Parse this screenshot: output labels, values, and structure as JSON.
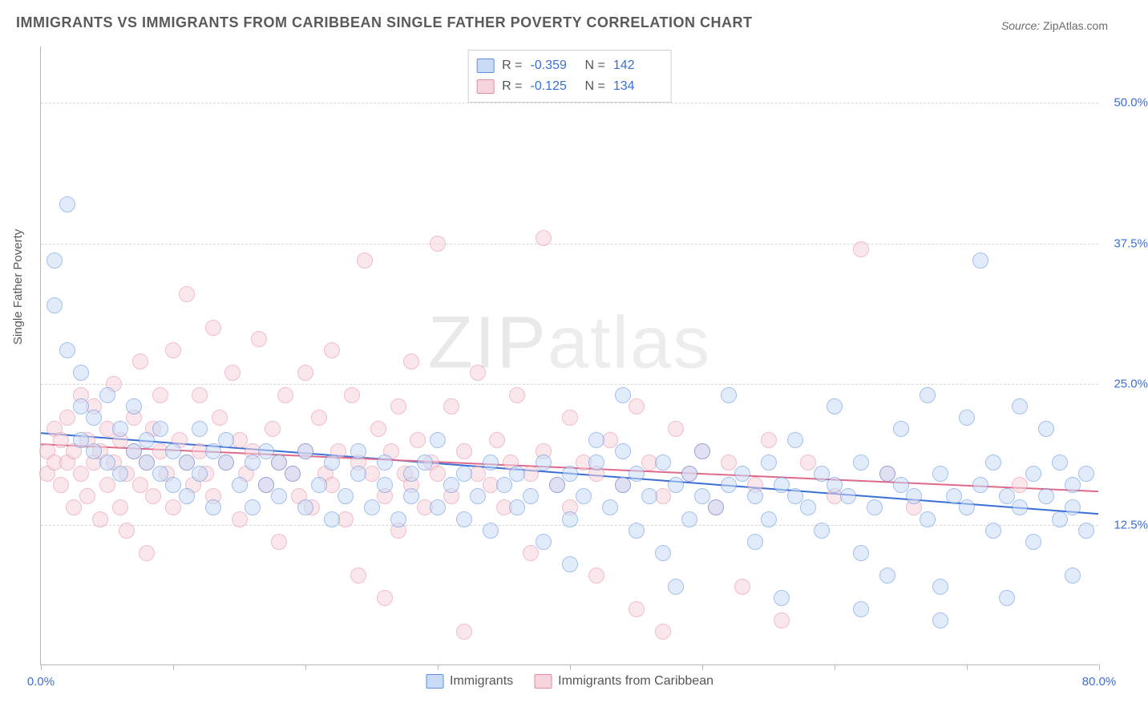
{
  "title": "IMMIGRANTS VS IMMIGRANTS FROM CARIBBEAN SINGLE FATHER POVERTY CORRELATION CHART",
  "source_label": "Source: ",
  "source_value": "ZipAtlas.com",
  "watermark": {
    "a": "ZIP",
    "b": "atlas"
  },
  "chart": {
    "type": "scatter",
    "background_color": "#ffffff",
    "grid_color": "#d8d8d8",
    "axis_color": "#b8b8b8",
    "tick_label_color": "#3a6fd8",
    "ylabel": "Single Father Poverty",
    "ylabel_fontsize": 15,
    "x": {
      "min": 0,
      "max": 80,
      "ticks": [
        0,
        10,
        20,
        30,
        40,
        50,
        60,
        70,
        80
      ],
      "tick_labels": {
        "0": "0.0%",
        "80": "80.0%"
      }
    },
    "y": {
      "min": 0,
      "max": 55,
      "gridlines": [
        12.5,
        25,
        37.5,
        50
      ],
      "tick_labels": {
        "12.5": "12.5%",
        "25": "25.0%",
        "37.5": "37.5%",
        "50": "50.0%"
      }
    },
    "marker_radius": 10,
    "marker_border_width": 1.5,
    "trend_line_width": 2,
    "stats_box": {
      "rows": [
        {
          "swatch_fill": "#c9dbf6",
          "swatch_stroke": "#5b8fe0",
          "r": "-0.359",
          "n": "142"
        },
        {
          "swatch_fill": "#f7d4dc",
          "swatch_stroke": "#e48aa0",
          "r": "-0.125",
          "n": "134"
        }
      ],
      "labels": {
        "r": "R =",
        "n": "N ="
      }
    },
    "series": [
      {
        "name": "Immigrants",
        "fill": "#c9dbf6",
        "stroke": "#5b8fe0",
        "fill_opacity": 0.55,
        "trend": {
          "x1": 0,
          "y1": 20.6,
          "x2": 80,
          "y2": 13.4,
          "color": "#3a6fd8"
        },
        "points": [
          [
            1,
            36
          ],
          [
            1,
            32
          ],
          [
            2,
            41
          ],
          [
            2,
            28
          ],
          [
            3,
            26
          ],
          [
            3,
            23
          ],
          [
            3,
            20
          ],
          [
            4,
            19
          ],
          [
            4,
            22
          ],
          [
            5,
            18
          ],
          [
            5,
            24
          ],
          [
            6,
            21
          ],
          [
            6,
            17
          ],
          [
            7,
            19
          ],
          [
            7,
            23
          ],
          [
            8,
            18
          ],
          [
            8,
            20
          ],
          [
            9,
            17
          ],
          [
            9,
            21
          ],
          [
            10,
            16
          ],
          [
            10,
            19
          ],
          [
            11,
            18
          ],
          [
            11,
            15
          ],
          [
            12,
            21
          ],
          [
            12,
            17
          ],
          [
            13,
            19
          ],
          [
            13,
            14
          ],
          [
            14,
            18
          ],
          [
            14,
            20
          ],
          [
            15,
            16
          ],
          [
            16,
            18
          ],
          [
            16,
            14
          ],
          [
            17,
            19
          ],
          [
            17,
            16
          ],
          [
            18,
            15
          ],
          [
            18,
            18
          ],
          [
            19,
            17
          ],
          [
            20,
            14
          ],
          [
            20,
            19
          ],
          [
            21,
            16
          ],
          [
            22,
            18
          ],
          [
            22,
            13
          ],
          [
            23,
            15
          ],
          [
            24,
            17
          ],
          [
            24,
            19
          ],
          [
            25,
            14
          ],
          [
            26,
            16
          ],
          [
            26,
            18
          ],
          [
            27,
            13
          ],
          [
            28,
            17
          ],
          [
            28,
            15
          ],
          [
            29,
            18
          ],
          [
            30,
            14
          ],
          [
            30,
            20
          ],
          [
            31,
            16
          ],
          [
            32,
            17
          ],
          [
            32,
            13
          ],
          [
            33,
            15
          ],
          [
            34,
            18
          ],
          [
            34,
            12
          ],
          [
            35,
            16
          ],
          [
            36,
            17
          ],
          [
            36,
            14
          ],
          [
            37,
            15
          ],
          [
            38,
            18
          ],
          [
            38,
            11
          ],
          [
            39,
            16
          ],
          [
            40,
            17
          ],
          [
            40,
            13
          ],
          [
            41,
            15
          ],
          [
            42,
            18
          ],
          [
            42,
            20
          ],
          [
            43,
            14
          ],
          [
            44,
            16
          ],
          [
            44,
            19
          ],
          [
            45,
            17
          ],
          [
            45,
            12
          ],
          [
            46,
            15
          ],
          [
            47,
            18
          ],
          [
            47,
            10
          ],
          [
            48,
            16
          ],
          [
            49,
            17
          ],
          [
            49,
            13
          ],
          [
            50,
            15
          ],
          [
            50,
            19
          ],
          [
            51,
            14
          ],
          [
            52,
            16
          ],
          [
            52,
            24
          ],
          [
            53,
            17
          ],
          [
            54,
            15
          ],
          [
            54,
            11
          ],
          [
            55,
            18
          ],
          [
            55,
            13
          ],
          [
            56,
            16
          ],
          [
            57,
            15
          ],
          [
            57,
            20
          ],
          [
            58,
            14
          ],
          [
            59,
            17
          ],
          [
            59,
            12
          ],
          [
            60,
            16
          ],
          [
            60,
            23
          ],
          [
            61,
            15
          ],
          [
            62,
            18
          ],
          [
            62,
            10
          ],
          [
            63,
            14
          ],
          [
            64,
            17
          ],
          [
            64,
            8
          ],
          [
            65,
            16
          ],
          [
            65,
            21
          ],
          [
            66,
            15
          ],
          [
            67,
            13
          ],
          [
            67,
            24
          ],
          [
            68,
            17
          ],
          [
            68,
            7
          ],
          [
            69,
            15
          ],
          [
            70,
            14
          ],
          [
            70,
            22
          ],
          [
            71,
            16
          ],
          [
            71,
            36
          ],
          [
            72,
            12
          ],
          [
            72,
            18
          ],
          [
            73,
            15
          ],
          [
            73,
            6
          ],
          [
            74,
            14
          ],
          [
            74,
            23
          ],
          [
            75,
            17
          ],
          [
            75,
            11
          ],
          [
            76,
            15
          ],
          [
            76,
            21
          ],
          [
            77,
            13
          ],
          [
            77,
            18
          ],
          [
            78,
            16
          ],
          [
            78,
            14
          ],
          [
            78,
            8
          ],
          [
            79,
            17
          ],
          [
            79,
            12
          ],
          [
            68,
            4
          ],
          [
            62,
            5
          ],
          [
            56,
            6
          ],
          [
            48,
            7
          ],
          [
            44,
            24
          ],
          [
            40,
            9
          ]
        ]
      },
      {
        "name": "Immigrants from Caribbean",
        "fill": "#f7d4dc",
        "stroke": "#e48aa0",
        "fill_opacity": 0.55,
        "trend": {
          "x1": 0,
          "y1": 19.6,
          "x2": 80,
          "y2": 15.4,
          "color": "#e06a8a"
        },
        "points": [
          [
            0.5,
            19
          ],
          [
            0.5,
            17
          ],
          [
            1,
            21
          ],
          [
            1,
            18
          ],
          [
            1.5,
            20
          ],
          [
            1.5,
            16
          ],
          [
            2,
            22
          ],
          [
            2,
            18
          ],
          [
            2.5,
            19
          ],
          [
            2.5,
            14
          ],
          [
            3,
            24
          ],
          [
            3,
            17
          ],
          [
            3.5,
            20
          ],
          [
            3.5,
            15
          ],
          [
            4,
            23
          ],
          [
            4,
            18
          ],
          [
            4.5,
            19
          ],
          [
            4.5,
            13
          ],
          [
            5,
            21
          ],
          [
            5,
            16
          ],
          [
            5.5,
            18
          ],
          [
            5.5,
            25
          ],
          [
            6,
            20
          ],
          [
            6,
            14
          ],
          [
            6.5,
            17
          ],
          [
            6.5,
            12
          ],
          [
            7,
            22
          ],
          [
            7,
            19
          ],
          [
            7.5,
            16
          ],
          [
            7.5,
            27
          ],
          [
            8,
            18
          ],
          [
            8,
            10
          ],
          [
            8.5,
            21
          ],
          [
            8.5,
            15
          ],
          [
            9,
            19
          ],
          [
            9,
            24
          ],
          [
            9.5,
            17
          ],
          [
            10,
            28
          ],
          [
            10,
            14
          ],
          [
            10.5,
            20
          ],
          [
            11,
            18
          ],
          [
            11,
            33
          ],
          [
            11.5,
            16
          ],
          [
            12,
            24
          ],
          [
            12,
            19
          ],
          [
            12.5,
            17
          ],
          [
            13,
            30
          ],
          [
            13,
            15
          ],
          [
            13.5,
            22
          ],
          [
            14,
            18
          ],
          [
            14.5,
            26
          ],
          [
            15,
            20
          ],
          [
            15,
            13
          ],
          [
            15.5,
            17
          ],
          [
            16,
            19
          ],
          [
            16.5,
            29
          ],
          [
            17,
            16
          ],
          [
            17.5,
            21
          ],
          [
            18,
            18
          ],
          [
            18,
            11
          ],
          [
            18.5,
            24
          ],
          [
            19,
            17
          ],
          [
            19.5,
            15
          ],
          [
            20,
            26
          ],
          [
            20,
            19
          ],
          [
            20.5,
            14
          ],
          [
            21,
            22
          ],
          [
            21.5,
            17
          ],
          [
            22,
            28
          ],
          [
            22,
            16
          ],
          [
            22.5,
            19
          ],
          [
            23,
            13
          ],
          [
            23.5,
            24
          ],
          [
            24,
            18
          ],
          [
            24,
            8
          ],
          [
            24.5,
            36
          ],
          [
            25,
            17
          ],
          [
            25.5,
            21
          ],
          [
            26,
            15
          ],
          [
            26,
            6
          ],
          [
            26.5,
            19
          ],
          [
            27,
            23
          ],
          [
            27,
            12
          ],
          [
            27.5,
            17
          ],
          [
            28,
            27
          ],
          [
            28,
            16
          ],
          [
            28.5,
            20
          ],
          [
            29,
            14
          ],
          [
            29.5,
            18
          ],
          [
            30,
            37.5
          ],
          [
            30,
            17
          ],
          [
            31,
            15
          ],
          [
            31,
            23
          ],
          [
            32,
            19
          ],
          [
            32,
            3
          ],
          [
            33,
            17
          ],
          [
            33,
            26
          ],
          [
            34,
            16
          ],
          [
            34.5,
            20
          ],
          [
            35,
            14
          ],
          [
            35.5,
            18
          ],
          [
            36,
            24
          ],
          [
            37,
            17
          ],
          [
            37,
            10
          ],
          [
            38,
            19
          ],
          [
            38,
            38
          ],
          [
            39,
            16
          ],
          [
            40,
            22
          ],
          [
            40,
            14
          ],
          [
            41,
            18
          ],
          [
            42,
            17
          ],
          [
            42,
            8
          ],
          [
            43,
            20
          ],
          [
            44,
            16
          ],
          [
            45,
            23
          ],
          [
            45,
            5
          ],
          [
            46,
            18
          ],
          [
            47,
            15
          ],
          [
            48,
            21
          ],
          [
            49,
            17
          ],
          [
            50,
            19
          ],
          [
            51,
            14
          ],
          [
            52,
            18
          ],
          [
            53,
            7
          ],
          [
            54,
            16
          ],
          [
            55,
            20
          ],
          [
            56,
            4
          ],
          [
            58,
            18
          ],
          [
            60,
            15
          ],
          [
            62,
            37
          ],
          [
            64,
            17
          ],
          [
            66,
            14
          ],
          [
            74,
            16
          ],
          [
            47,
            3
          ]
        ]
      }
    ]
  }
}
